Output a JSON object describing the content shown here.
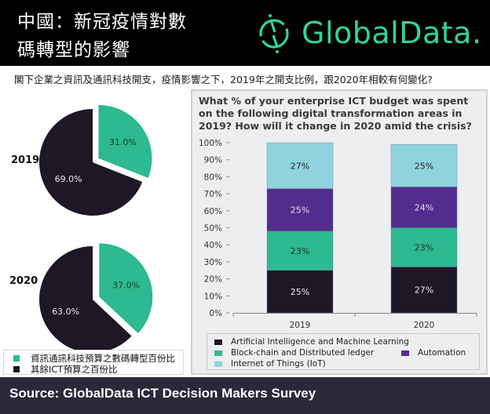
{
  "header": {
    "title_line1": "中國：新冠疫情對數",
    "title_line2": "碼轉型的影響",
    "logo_text": "GlobalData.",
    "logo_icon": "globaldata-logo-icon"
  },
  "subtitle": "閣下企業之資訊及通訊科技開支，疫情影響之下，2019年之開支比例，跟2020年相較有何變化?",
  "colors": {
    "black_series": "#1d1726",
    "green_series": "#2db991",
    "purple_series": "#522d8d",
    "light_blue_series": "#8fd4de",
    "logo_green": "#2fd59b",
    "footer_bg": "#2b2839",
    "panel_bg": "#edeef0"
  },
  "chart_data": [
    {
      "type": "pie",
      "title": "2019",
      "slices": [
        {
          "label": "資訊通訊科技預算之數碼轉型百份比",
          "value": 31.0,
          "display": "31.0%"
        },
        {
          "label": "其餘ICT預算之百份比",
          "value": 69.0,
          "display": "69.0%"
        }
      ]
    },
    {
      "type": "pie",
      "title": "2020",
      "slices": [
        {
          "label": "資訊通訊科技預算之數碼轉型百份比",
          "value": 37.0,
          "display": "37.0%"
        },
        {
          "label": "其餘ICT預算之百份比",
          "value": 63.0,
          "display": "63.0%"
        }
      ]
    },
    {
      "type": "bar",
      "stacked": true,
      "title": "What % of your enterprise ICT budget was spent on the following digital transformation areas in 2019? How will it change in 2020 amid the crisis?",
      "categories": [
        "2019",
        "2020"
      ],
      "yticks": [
        "0%",
        "10%",
        "20%",
        "30%",
        "40%",
        "50%",
        "60%",
        "70%",
        "80%",
        "90%",
        "100%"
      ],
      "ylim": [
        0,
        100
      ],
      "series": [
        {
          "name": "Artificial Intelligence and Machine Learning",
          "values": [
            25,
            27
          ],
          "labels": [
            "25%",
            "27%"
          ]
        },
        {
          "name": "Block-chain and Distributed ledger",
          "values": [
            23,
            23
          ],
          "labels": [
            "23%",
            "23%"
          ]
        },
        {
          "name": "Automation",
          "values": [
            25,
            24
          ],
          "labels": [
            "25%",
            "24%"
          ]
        },
        {
          "name": "Internet of Things (IoT)",
          "values": [
            27,
            25
          ],
          "labels": [
            "27%",
            "25%"
          ]
        }
      ],
      "legend": "bottom"
    }
  ],
  "pie_legend": [
    {
      "label": "資訊通訊科技預算之數碼轉型百份比"
    },
    {
      "label": "其餘ICT預算之百份比"
    }
  ],
  "footer": {
    "source": "Source: GlobalData ICT Decision Makers Survey"
  }
}
